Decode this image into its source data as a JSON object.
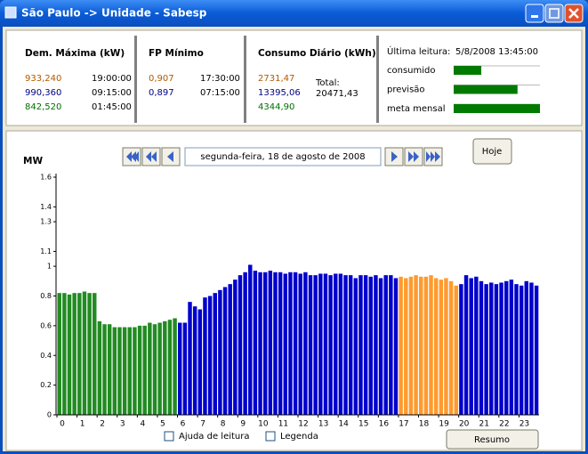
{
  "window": {
    "title": "São Paulo -> Unidade - Sabesp"
  },
  "panels": {
    "demanda": {
      "title": "Dem. Máxima (kW)",
      "rows": [
        [
          "933,240",
          "19:00:00"
        ],
        [
          "990,360",
          "09:15:00"
        ],
        [
          "842,520",
          "01:45:00"
        ]
      ]
    },
    "fp": {
      "title": "FP Mínimo",
      "rows": [
        [
          "0,907",
          "17:30:00"
        ],
        [
          "0,897",
          "07:15:00"
        ]
      ]
    },
    "consumo": {
      "title": "Consumo Diário (kWh)",
      "values": [
        "2731,47",
        "13395,06",
        "4344,90"
      ],
      "total_label": "Total:",
      "total": "20471,43"
    },
    "leitura": {
      "label": "Última leitura:",
      "value": "5/8/2008 13:45:00",
      "meters": [
        {
          "label": "consumido",
          "value": 0.32
        },
        {
          "label": "previsão",
          "value": 0.74
        },
        {
          "label": "meta mensal",
          "value": 1.0
        }
      ]
    }
  },
  "chart_data": {
    "type": "bar",
    "y_label": "MW",
    "date": "segunda-feira, 18 de agosto de 2008",
    "xlim": [
      0,
      24
    ],
    "xticks": [
      0,
      1,
      2,
      3,
      4,
      5,
      6,
      7,
      8,
      9,
      10,
      11,
      12,
      13,
      14,
      15,
      16,
      17,
      18,
      19,
      20,
      21,
      22,
      23
    ],
    "ylim": [
      0,
      1.6
    ],
    "yticks": [
      0,
      0.2,
      0.4,
      0.6,
      0.8,
      1.0,
      1.1,
      1.3,
      1.4,
      1.6
    ],
    "values": [
      0.82,
      0.82,
      0.81,
      0.82,
      0.82,
      0.83,
      0.82,
      0.82,
      0.63,
      0.61,
      0.61,
      0.59,
      0.59,
      0.59,
      0.59,
      0.59,
      0.6,
      0.6,
      0.62,
      0.61,
      0.62,
      0.63,
      0.64,
      0.65,
      0.62,
      0.62,
      0.76,
      0.73,
      0.71,
      0.79,
      0.8,
      0.82,
      0.84,
      0.86,
      0.88,
      0.91,
      0.94,
      0.96,
      1.01,
      0.97,
      0.96,
      0.96,
      0.97,
      0.96,
      0.96,
      0.95,
      0.96,
      0.96,
      0.95,
      0.96,
      0.94,
      0.94,
      0.95,
      0.95,
      0.94,
      0.95,
      0.95,
      0.94,
      0.94,
      0.92,
      0.94,
      0.94,
      0.93,
      0.94,
      0.92,
      0.94,
      0.94,
      0.92,
      0.93,
      0.92,
      0.93,
      0.94,
      0.93,
      0.93,
      0.94,
      0.92,
      0.91,
      0.92,
      0.9,
      0.87,
      0.88,
      0.94,
      0.92,
      0.93,
      0.9,
      0.88,
      0.89,
      0.88,
      0.89,
      0.9,
      0.91,
      0.88,
      0.87,
      0.9,
      0.89,
      0.87
    ],
    "colors": [
      "#228b22",
      "#228b22",
      "#228b22",
      "#228b22",
      "#228b22",
      "#228b22",
      "#228b22",
      "#228b22",
      "#228b22",
      "#228b22",
      "#228b22",
      "#228b22",
      "#228b22",
      "#228b22",
      "#228b22",
      "#228b22",
      "#228b22",
      "#228b22",
      "#228b22",
      "#228b22",
      "#228b22",
      "#228b22",
      "#228b22",
      "#228b22",
      "#0000cc",
      "#0000cc",
      "#0000cc",
      "#0000cc",
      "#0000cc",
      "#0000cc",
      "#0000cc",
      "#0000cc",
      "#0000cc",
      "#0000cc",
      "#0000cc",
      "#0000cc",
      "#0000cc",
      "#0000cc",
      "#0000cc",
      "#0000cc",
      "#0000cc",
      "#0000cc",
      "#0000cc",
      "#0000cc",
      "#0000cc",
      "#0000cc",
      "#0000cc",
      "#0000cc",
      "#0000cc",
      "#0000cc",
      "#0000cc",
      "#0000cc",
      "#0000cc",
      "#0000cc",
      "#0000cc",
      "#0000cc",
      "#0000cc",
      "#0000cc",
      "#0000cc",
      "#0000cc",
      "#0000cc",
      "#0000cc",
      "#0000cc",
      "#0000cc",
      "#0000cc",
      "#0000cc",
      "#0000cc",
      "#0000cc",
      "#ff9a2e",
      "#ff9a2e",
      "#ff9a2e",
      "#ff9a2e",
      "#ff9a2e",
      "#ff9a2e",
      "#ff9a2e",
      "#ff9a2e",
      "#ff9a2e",
      "#ff9a2e",
      "#ff9a2e",
      "#ff9a2e",
      "#0000cc",
      "#0000cc",
      "#0000cc",
      "#0000cc",
      "#0000cc",
      "#0000cc",
      "#0000cc",
      "#0000cc",
      "#0000cc",
      "#0000cc",
      "#0000cc",
      "#0000cc",
      "#0000cc",
      "#0000cc",
      "#0000cc",
      "#0000cc"
    ]
  },
  "controls": {
    "today": "Hoje",
    "help": "Ajuda de leitura",
    "legend": "Legenda",
    "summary": "Resumo"
  }
}
